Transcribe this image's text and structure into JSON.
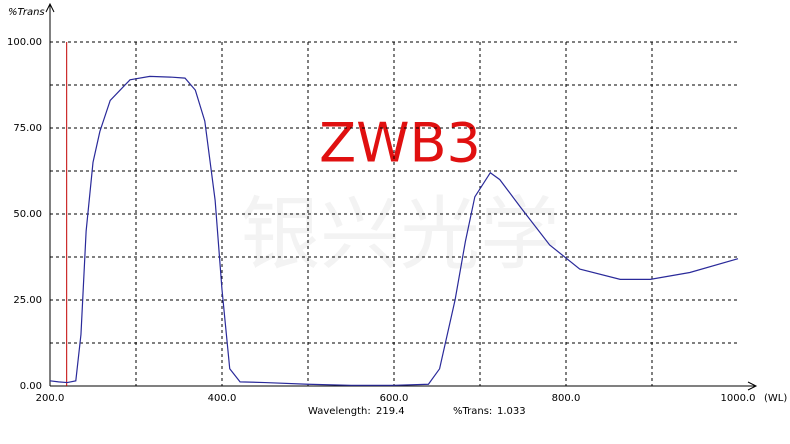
{
  "chart_data": {
    "type": "line",
    "y_label": "%Trans",
    "x_label": "(WL)",
    "annotation": "ZWB3",
    "watermark": "银兴光学",
    "xlim": [
      200,
      1000
    ],
    "ylim": [
      0,
      100
    ],
    "xticks": [
      {
        "value": 200,
        "label": "200.0"
      },
      {
        "value": 400,
        "label": "400.0"
      },
      {
        "value": 600,
        "label": "600.0"
      },
      {
        "value": 800,
        "label": "800.0"
      },
      {
        "value": 1000,
        "label": "1000.0"
      }
    ],
    "yticks": [
      {
        "value": 0,
        "label": "0.00"
      },
      {
        "value": 25,
        "label": "25.00"
      },
      {
        "value": 50,
        "label": "50.00"
      },
      {
        "value": 75,
        "label": "75.00"
      },
      {
        "value": 100,
        "label": "100.00"
      }
    ],
    "xgrid": [
      300,
      400,
      500,
      600,
      700,
      800,
      900
    ],
    "ygrid": [
      12.5,
      25,
      37.5,
      50,
      62.5,
      75,
      87.5,
      100
    ],
    "grid": true,
    "series": [
      {
        "color": "#2a2a9a",
        "x": [
          200,
          210,
          220,
          230,
          236,
          242,
          250,
          258,
          270,
          293,
          316,
          340,
          357,
          369,
          380,
          392,
          400,
          409,
          421,
          450,
          500,
          550,
          600,
          640,
          653,
          671,
          683,
          694,
          712,
          723,
          747,
          781,
          816,
          863,
          898,
          944,
          1000
        ],
        "values": [
          1.5,
          1.2,
          1,
          1.5,
          15,
          45,
          65,
          74,
          83,
          89,
          90,
          89.8,
          89.5,
          86,
          77,
          54,
          28,
          5,
          1.2,
          1,
          0.5,
          0.2,
          0.2,
          0.5,
          5,
          25,
          42,
          55,
          62,
          60,
          52,
          41,
          34,
          31,
          31,
          33,
          37
        ]
      }
    ],
    "cursor": {
      "wavelength_label": "Wavelength:",
      "wavelength": 219.4,
      "trans_label": "%Trans:",
      "trans": 1.033,
      "color": "#c00000"
    }
  }
}
